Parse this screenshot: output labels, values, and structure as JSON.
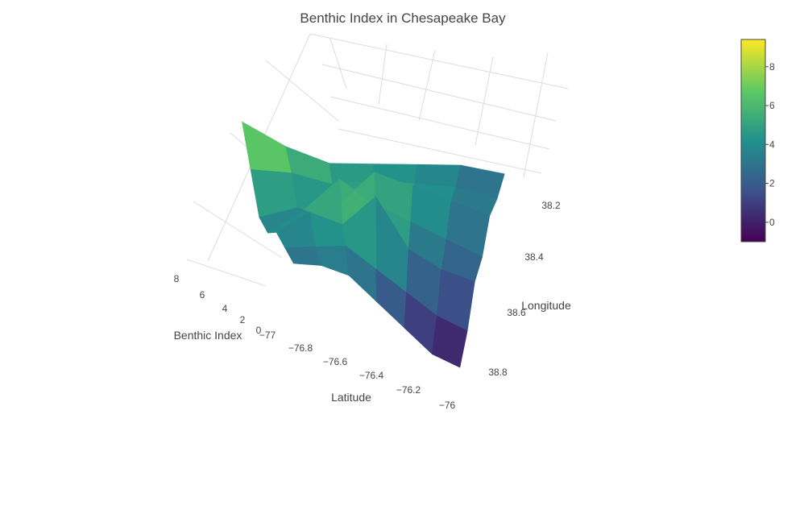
{
  "chart_data": {
    "type": "surface3d",
    "title": "Benthic Index in  Chesapeake Bay",
    "xlabel": "Latitude",
    "ylabel": "Longitude",
    "zlabel": "Benthic Index",
    "x_ticks": [
      "−77",
      "−76.8",
      "−76.6",
      "−76.4",
      "−76.2",
      "−76"
    ],
    "y_ticks": [
      "38.2",
      "38.4",
      "38.6",
      "38.8"
    ],
    "z_ticks": [
      "0",
      "2",
      "4",
      "6",
      "8"
    ],
    "xlim": [
      -77.05,
      -75.95
    ],
    "ylim": [
      38.15,
      38.85
    ],
    "zlim": [
      -0.5,
      9
    ],
    "colorscale": "Viridis",
    "colorbar": {
      "ticks": [
        "0",
        "2",
        "4",
        "6",
        "8"
      ],
      "range": [
        -1,
        9.4
      ],
      "colors": [
        "#440154",
        "#3b528b",
        "#21918c",
        "#5ec962",
        "#fde725"
      ]
    },
    "x_values": [
      -76.95,
      -76.8,
      -76.65,
      -76.5,
      -76.35,
      -76.2,
      -76.05
    ],
    "y_values": [
      38.2,
      38.3,
      38.4,
      38.5,
      38.6,
      38.7,
      38.8
    ],
    "z_values": [
      [
        8.5,
        6.5,
        5.0,
        4.5,
        4.0,
        3.5,
        2.5
      ],
      [
        6.0,
        5.5,
        4.5,
        4.5,
        4.0,
        3.5,
        2.5
      ],
      [
        3.5,
        4.0,
        4.0,
        6.0,
        5.0,
        4.0,
        3.0
      ],
      [
        3.0,
        4.5,
        6.5,
        5.0,
        4.0,
        3.0,
        2.0
      ],
      [
        3.5,
        5.0,
        4.5,
        6.5,
        3.5,
        2.5,
        2.0
      ],
      [
        3.0,
        3.5,
        4.0,
        3.0,
        2.0,
        1.0,
        0.5
      ],
      [
        2.5,
        3.0,
        3.0,
        2.0,
        1.0,
        0.0,
        -0.2
      ]
    ]
  }
}
